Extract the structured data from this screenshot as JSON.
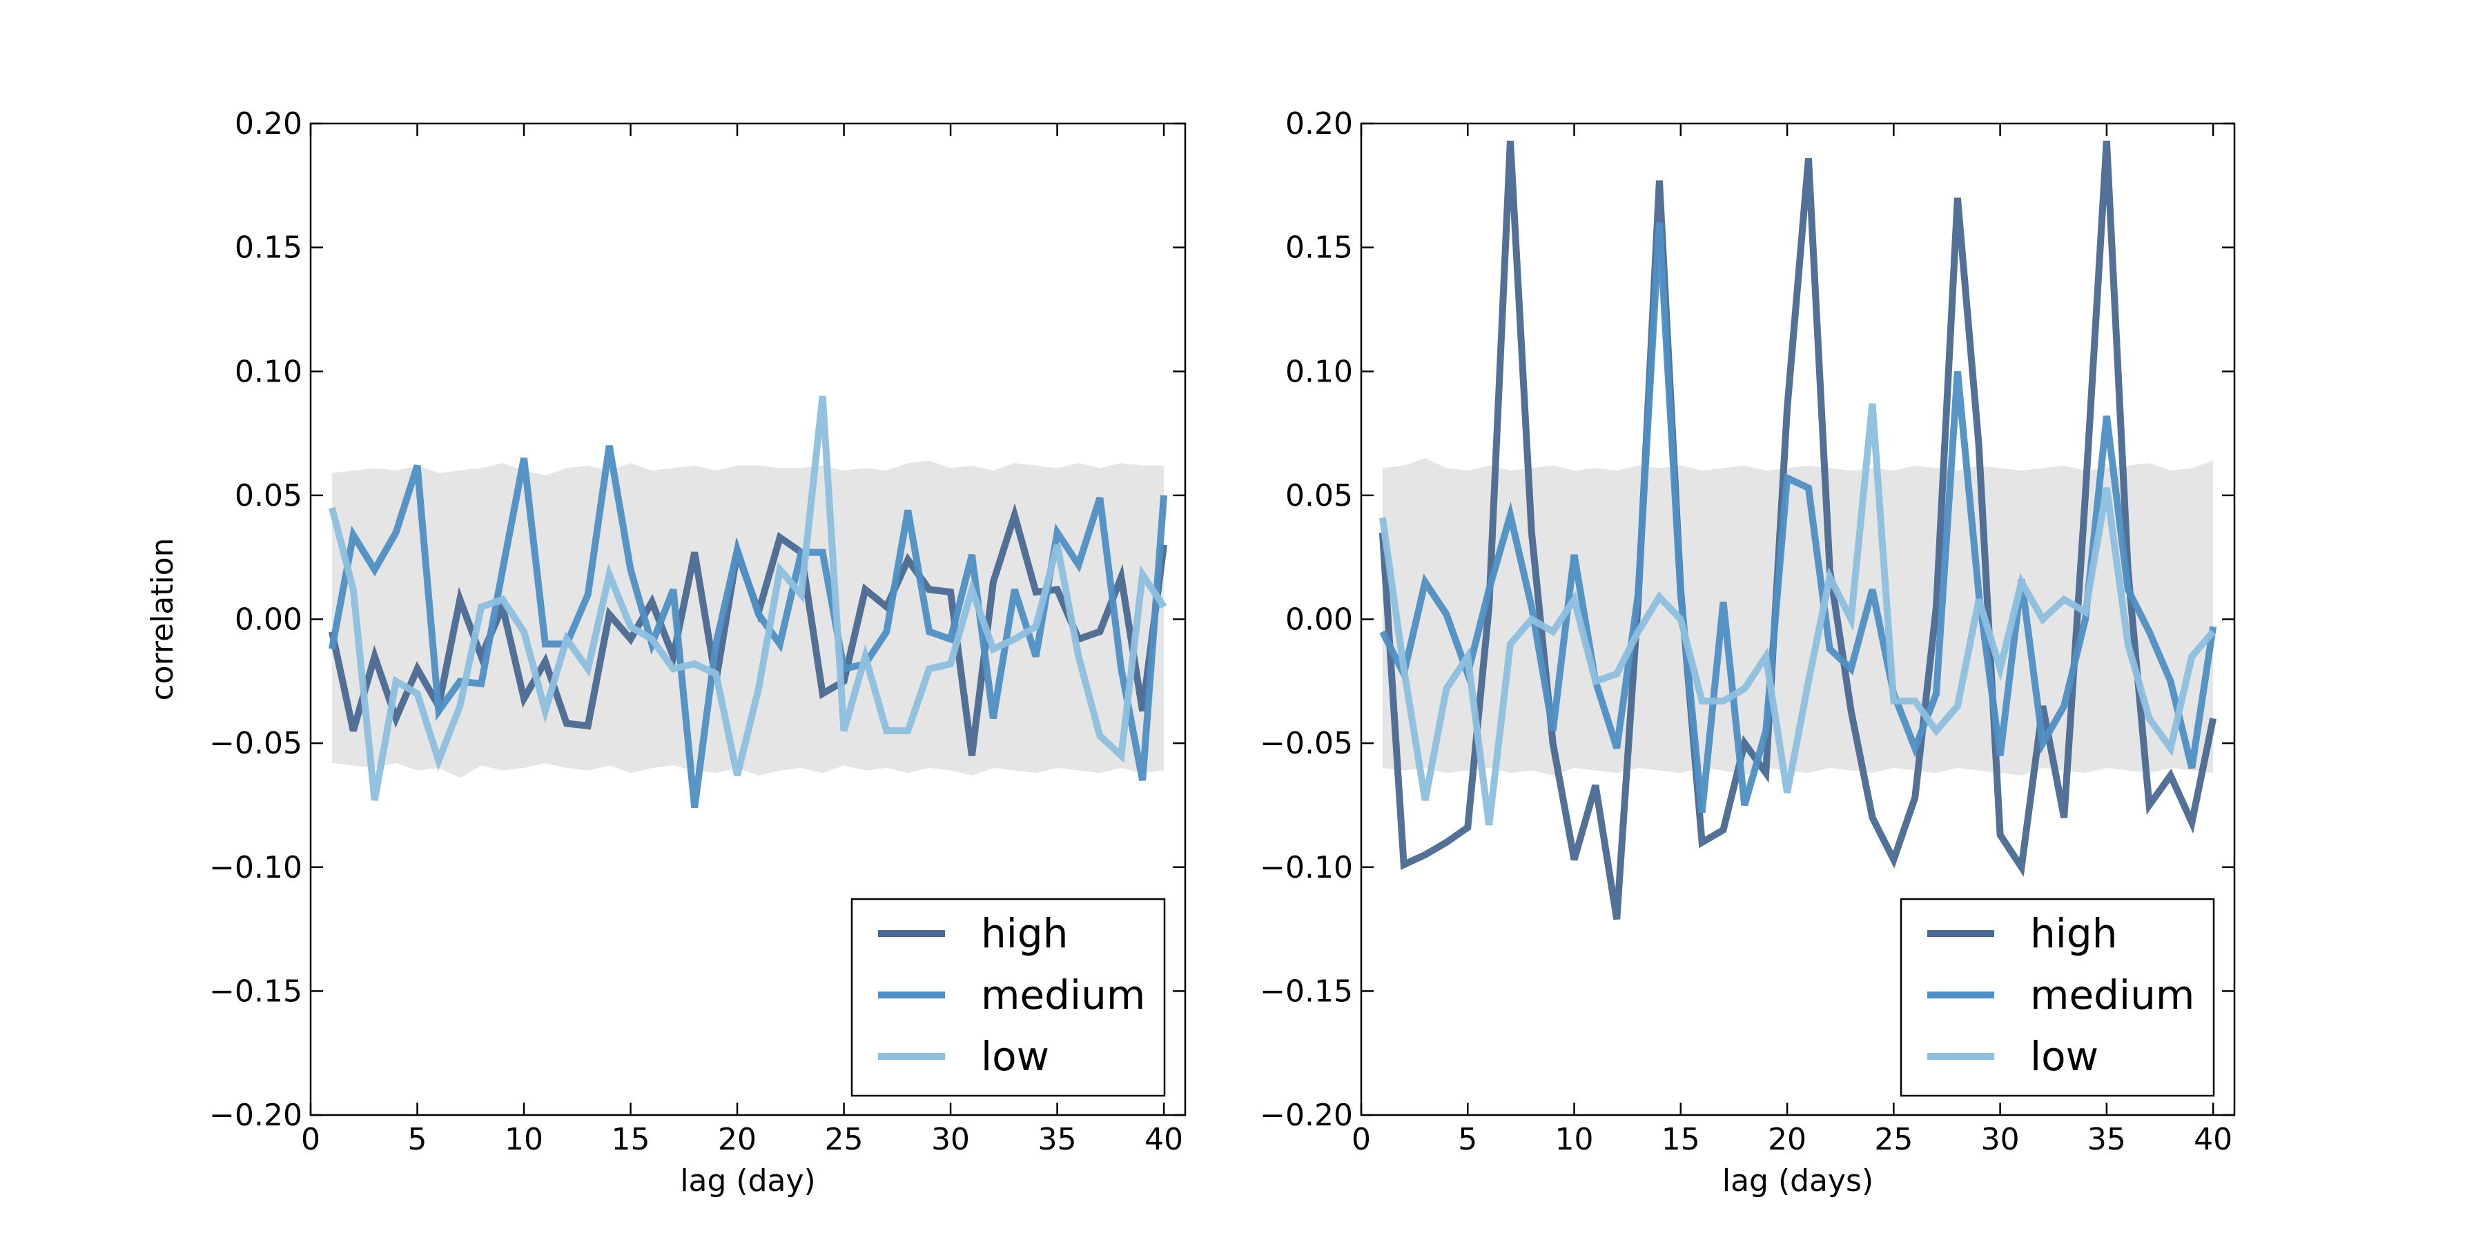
{
  "chart_data": [
    {
      "type": "line",
      "xlabel": "lag (day)",
      "ylabel": "correlation",
      "x": [
        1,
        2,
        3,
        4,
        5,
        6,
        7,
        8,
        9,
        10,
        11,
        12,
        13,
        14,
        15,
        16,
        17,
        18,
        19,
        20,
        21,
        22,
        23,
        24,
        25,
        26,
        27,
        28,
        29,
        30,
        31,
        32,
        33,
        34,
        35,
        36,
        37,
        38,
        39,
        40
      ],
      "xlim": [
        0,
        41
      ],
      "xticks": [
        0,
        5,
        10,
        15,
        20,
        25,
        30,
        35,
        40
      ],
      "ylim": [
        -0.2,
        0.2
      ],
      "yticks": [
        {
          "value": -0.2,
          "label": "−0.20"
        },
        {
          "value": -0.15,
          "label": "−0.15"
        },
        {
          "value": -0.1,
          "label": "−0.10"
        },
        {
          "value": -0.05,
          "label": "−0.05"
        },
        {
          "value": 0,
          "label": "0.00"
        },
        {
          "value": 0.05,
          "label": "0.05"
        },
        {
          "value": 0.1,
          "label": "0.10"
        },
        {
          "value": 0.15,
          "label": "0.15"
        },
        {
          "value": 0.2,
          "label": "0.20"
        }
      ],
      "legend": "lower right",
      "band": {
        "color": "#e5e5e5",
        "upper": [
          0.059,
          0.06,
          0.061,
          0.06,
          0.062,
          0.059,
          0.06,
          0.061,
          0.063,
          0.06,
          0.058,
          0.061,
          0.062,
          0.06,
          0.063,
          0.06,
          0.061,
          0.062,
          0.06,
          0.062,
          0.062,
          0.061,
          0.061,
          0.062,
          0.06,
          0.061,
          0.06,
          0.063,
          0.064,
          0.061,
          0.062,
          0.06,
          0.063,
          0.062,
          0.061,
          0.063,
          0.061,
          0.063,
          0.062,
          0.062
        ],
        "lower": [
          -0.058,
          -0.059,
          -0.06,
          -0.058,
          -0.061,
          -0.06,
          -0.064,
          -0.059,
          -0.061,
          -0.06,
          -0.058,
          -0.06,
          -0.061,
          -0.059,
          -0.062,
          -0.06,
          -0.059,
          -0.061,
          -0.062,
          -0.06,
          -0.063,
          -0.061,
          -0.06,
          -0.062,
          -0.059,
          -0.061,
          -0.06,
          -0.062,
          -0.06,
          -0.061,
          -0.063,
          -0.06,
          -0.061,
          -0.062,
          -0.06,
          -0.061,
          -0.062,
          -0.06,
          -0.062,
          -0.061
        ]
      },
      "series": [
        {
          "name": "high",
          "color": "#4a6890",
          "values": [
            -0.005,
            -0.045,
            -0.015,
            -0.04,
            -0.02,
            -0.035,
            0.008,
            -0.015,
            0.005,
            -0.032,
            -0.017,
            -0.042,
            -0.043,
            0.002,
            -0.008,
            0.007,
            -0.015,
            0.027,
            -0.025,
            0.027,
            0.003,
            0.033,
            0.027,
            -0.03,
            -0.025,
            0.012,
            0.005,
            0.024,
            0.012,
            0.011,
            -0.055,
            0.015,
            0.042,
            0.011,
            0.012,
            -0.008,
            -0.005,
            0.017,
            -0.037,
            0.03
          ]
        },
        {
          "name": "medium",
          "color": "#4f8fc4",
          "values": [
            -0.012,
            0.034,
            0.02,
            0.035,
            0.062,
            -0.037,
            -0.025,
            -0.026,
            0.02,
            0.065,
            -0.01,
            -0.01,
            0.01,
            0.07,
            0.02,
            -0.01,
            0.012,
            -0.076,
            -0.01,
            0.028,
            0.002,
            -0.01,
            0.027,
            0.027,
            -0.02,
            -0.018,
            -0.005,
            0.044,
            -0.005,
            -0.008,
            0.026,
            -0.04,
            0.012,
            -0.015,
            0.035,
            0.022,
            0.049,
            -0.02,
            -0.065,
            0.05
          ]
        },
        {
          "name": "low",
          "color": "#8dbfdf",
          "values": [
            0.045,
            0.012,
            -0.073,
            -0.025,
            -0.03,
            -0.057,
            -0.035,
            0.005,
            0.008,
            -0.005,
            -0.037,
            -0.008,
            -0.02,
            0.018,
            -0.003,
            -0.008,
            -0.02,
            -0.018,
            -0.022,
            -0.063,
            -0.028,
            0.02,
            0.01,
            0.09,
            -0.045,
            -0.015,
            -0.045,
            -0.045,
            -0.02,
            -0.018,
            0.012,
            -0.012,
            -0.008,
            -0.003,
            0.03,
            -0.015,
            -0.047,
            -0.055,
            0.018,
            0.005
          ]
        }
      ]
    },
    {
      "type": "line",
      "xlabel": "lag (days)",
      "x": [
        1,
        2,
        3,
        4,
        5,
        6,
        7,
        8,
        9,
        10,
        11,
        12,
        13,
        14,
        15,
        16,
        17,
        18,
        19,
        20,
        21,
        22,
        23,
        24,
        25,
        26,
        27,
        28,
        29,
        30,
        31,
        32,
        33,
        34,
        35,
        36,
        37,
        38,
        39,
        40
      ],
      "xlim": [
        0,
        41
      ],
      "xticks": [
        0,
        5,
        10,
        15,
        20,
        25,
        30,
        35,
        40
      ],
      "ylim": [
        -0.2,
        0.2
      ],
      "yticks": [
        {
          "value": -0.2,
          "label": "−0.20"
        },
        {
          "value": -0.15,
          "label": "−0.15"
        },
        {
          "value": -0.1,
          "label": "−0.10"
        },
        {
          "value": -0.05,
          "label": "−0.05"
        },
        {
          "value": 0,
          "label": "0.00"
        },
        {
          "value": 0.05,
          "label": "0.05"
        },
        {
          "value": 0.1,
          "label": "0.10"
        },
        {
          "value": 0.15,
          "label": "0.15"
        },
        {
          "value": 0.2,
          "label": "0.20"
        }
      ],
      "legend": "lower right",
      "band": {
        "color": "#e5e5e5",
        "upper": [
          0.061,
          0.062,
          0.065,
          0.061,
          0.06,
          0.062,
          0.06,
          0.061,
          0.062,
          0.06,
          0.061,
          0.06,
          0.062,
          0.061,
          0.062,
          0.06,
          0.061,
          0.062,
          0.06,
          0.061,
          0.062,
          0.061,
          0.06,
          0.061,
          0.06,
          0.062,
          0.061,
          0.06,
          0.062,
          0.061,
          0.06,
          0.061,
          0.062,
          0.06,
          0.061,
          0.062,
          0.063,
          0.06,
          0.061,
          0.064
        ],
        "lower": [
          -0.06,
          -0.061,
          -0.06,
          -0.062,
          -0.061,
          -0.06,
          -0.062,
          -0.061,
          -0.063,
          -0.06,
          -0.061,
          -0.062,
          -0.06,
          -0.061,
          -0.062,
          -0.06,
          -0.061,
          -0.063,
          -0.06,
          -0.061,
          -0.062,
          -0.06,
          -0.061,
          -0.062,
          -0.06,
          -0.061,
          -0.062,
          -0.06,
          -0.061,
          -0.062,
          -0.063,
          -0.06,
          -0.061,
          -0.062,
          -0.06,
          -0.061,
          -0.062,
          -0.06,
          -0.061,
          -0.062
        ]
      },
      "series": [
        {
          "name": "high",
          "color": "#4a6890",
          "values": [
            0.035,
            -0.099,
            -0.095,
            -0.09,
            -0.084,
            0.005,
            0.193,
            0.035,
            -0.05,
            -0.097,
            -0.067,
            -0.121,
            0.007,
            0.177,
            0.012,
            -0.09,
            -0.085,
            -0.05,
            -0.062,
            0.085,
            0.186,
            0.02,
            -0.037,
            -0.08,
            -0.097,
            -0.072,
            0.005,
            0.17,
            0.07,
            -0.087,
            -0.1,
            -0.035,
            -0.08,
            0.05,
            0.193,
            0.02,
            -0.075,
            -0.063,
            -0.082,
            -0.04
          ]
        },
        {
          "name": "medium",
          "color": "#4f8fc4",
          "values": [
            -0.005,
            -0.022,
            0.015,
            0.002,
            -0.022,
            0.012,
            0.042,
            0.005,
            -0.045,
            0.026,
            -0.025,
            -0.052,
            0.01,
            0.16,
            0.01,
            -0.078,
            0.007,
            -0.075,
            -0.045,
            0.057,
            0.053,
            -0.012,
            -0.02,
            0.012,
            -0.03,
            -0.052,
            -0.03,
            0.1,
            0.01,
            -0.055,
            0.016,
            -0.05,
            -0.035,
            0,
            0.082,
            0.012,
            -0.005,
            -0.025,
            -0.06,
            -0.003
          ]
        },
        {
          "name": "low",
          "color": "#8dbfdf",
          "values": [
            0.041,
            -0.02,
            -0.073,
            -0.028,
            -0.015,
            -0.083,
            -0.01,
            0,
            -0.005,
            0.008,
            -0.025,
            -0.022,
            -0.005,
            0.009,
            0,
            -0.033,
            -0.033,
            -0.028,
            -0.015,
            -0.07,
            -0.025,
            0.017,
            0,
            0.087,
            -0.033,
            -0.033,
            -0.045,
            -0.035,
            0.008,
            -0.02,
            0.015,
            0,
            0.008,
            0.003,
            0.053,
            -0.01,
            -0.04,
            -0.052,
            -0.015,
            -0.005
          ]
        }
      ]
    }
  ]
}
